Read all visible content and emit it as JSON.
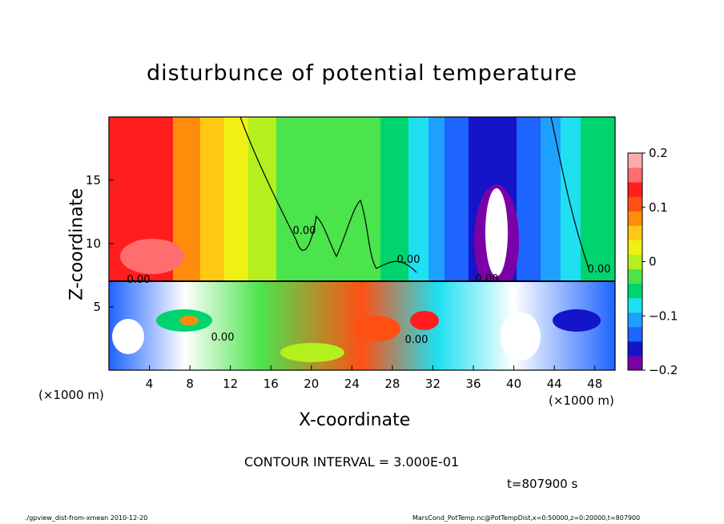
{
  "chart_data": {
    "type": "heatmap",
    "title": "disturbunce of potential temperature",
    "xlabel": "X-coordinate",
    "ylabel": "Z-coordinate",
    "x_unit_left": "(×1000 m)",
    "x_unit_right": "(×1000 m)",
    "xlim": [
      0,
      50
    ],
    "ylim": [
      0,
      20
    ],
    "x_ticks": [
      "4",
      "8",
      "12",
      "16",
      "20",
      "24",
      "28",
      "32",
      "36",
      "40",
      "44",
      "48"
    ],
    "y_ticks": [
      "5",
      "10",
      "15"
    ],
    "colorbar": {
      "range": [
        -0.2,
        0.2
      ],
      "labels": [
        "0.2",
        "0.1",
        "0",
        "−0.1",
        "−0.2"
      ]
    },
    "contour_labels": [
      "0.00",
      "0.00",
      "0.00",
      "0.00",
      "0.00",
      "0.00",
      "0.00"
    ],
    "contour_interval": "CONTOUR INTERVAL = 3.000E-01",
    "time": "t=807900  s"
  },
  "footer": {
    "left": "./gpview_dist-from-xmean  2010-12-20",
    "right": "MarsCond_PotTemp.nc@PotTempDist,x=0:50000,z=0:20000,t=807900"
  },
  "colors": {
    "scale": [
      "#7a00a8",
      "#1414c8",
      "#1e64ff",
      "#1ea0ff",
      "#1ee0f0",
      "#00d46e",
      "#4ce44c",
      "#b4f01e",
      "#f0f014",
      "#ffc814",
      "#ff8c0a",
      "#ff5014",
      "#ff1e1e",
      "#ff6e6e",
      "#ffaaaa"
    ]
  }
}
